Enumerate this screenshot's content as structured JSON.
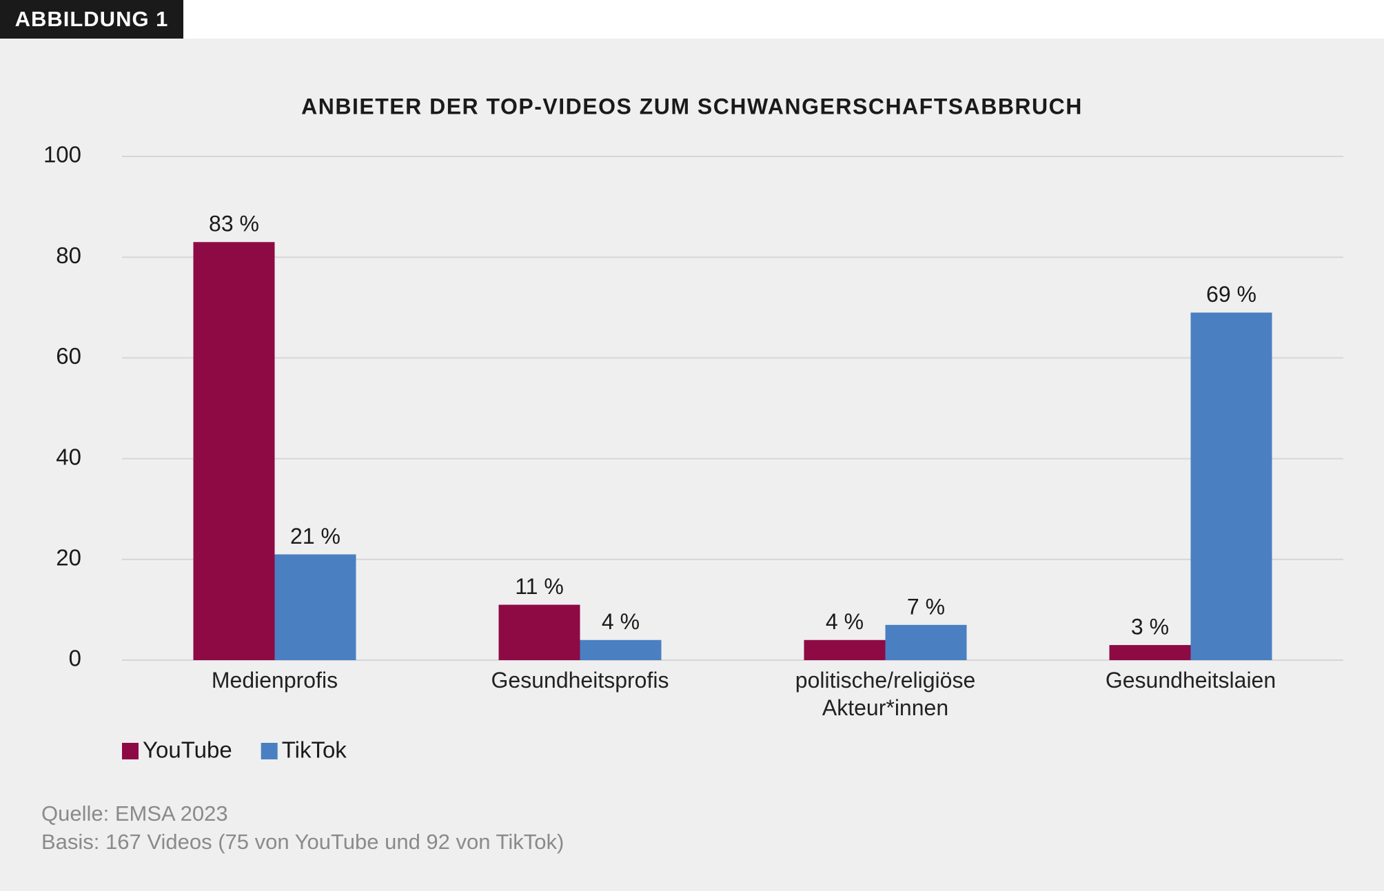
{
  "chart_data": {
    "type": "bar",
    "figure_label": "ABBILDUNG 1",
    "title": "ANBIETER DER TOP-VIDEOS ZUM SCHWANGERSCHAFTSABBRUCH",
    "categories": [
      "Medienprofis",
      "Gesundheitsprofis",
      "politische/religiöse Akteur*innen",
      "Gesundheitslaien"
    ],
    "series": [
      {
        "name": "YouTube",
        "color": "#8e0a45",
        "values": [
          83,
          11,
          4,
          3
        ],
        "value_labels": [
          "83 %",
          "11 %",
          "4 %",
          "3 %"
        ]
      },
      {
        "name": "TikTok",
        "color": "#4a80c2",
        "values": [
          21,
          4,
          7,
          69
        ],
        "value_labels": [
          "21 %",
          "4 %",
          "7 %",
          "69 %"
        ]
      }
    ],
    "ylim": [
      0,
      100
    ],
    "yticks": [
      0,
      20,
      40,
      60,
      80,
      100
    ],
    "grid": true,
    "legend": "bottom-left",
    "source": "Quelle: EMSA 2023",
    "note": "Basis: 167 Videos (75 von YouTube und 92 von TikTok)"
  }
}
